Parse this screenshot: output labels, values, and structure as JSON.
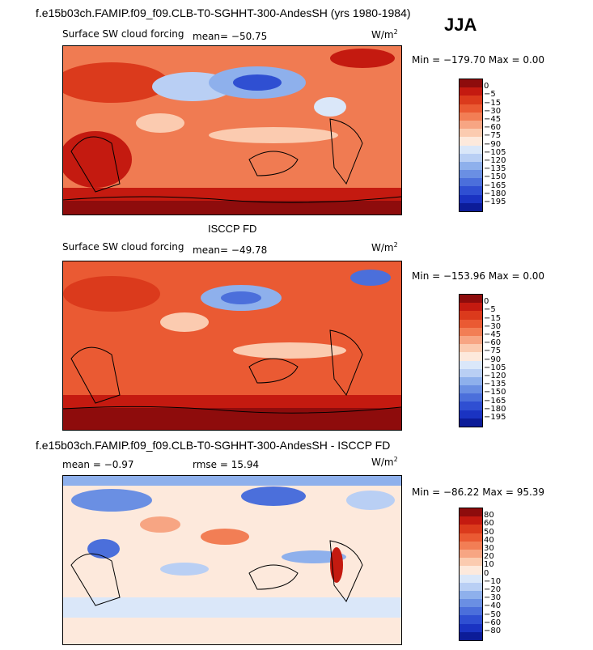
{
  "header": {
    "case_title": "f.e15b03ch.FAMIP.f09_f09.CLB-T0-SGHHT-300-AndesSH (yrs 1980-1984)",
    "season": "JJA"
  },
  "panels": [
    {
      "id": "model",
      "variable": "Surface SW cloud forcing",
      "mean_label": "mean= −50.75",
      "units": "W/m",
      "units_sup": "2",
      "minmax": "Min = −179.70 Max =    0.00",
      "title_above": "",
      "colorbar_levels": [
        "0",
        "−5",
        "−15",
        "−30",
        "−45",
        "−60",
        "−75",
        "−90",
        "−105",
        "−120",
        "−135",
        "−150",
        "−165",
        "−180",
        "−195"
      ],
      "colorbar_colors": [
        "#8e0c0c",
        "#c41a10",
        "#db3a1c",
        "#ea5a33",
        "#f27e55",
        "#f7a583",
        "#fbcbb0",
        "#fde9dc",
        "#dae7f9",
        "#b9cff4",
        "#8eb0ec",
        "#6a8fe3",
        "#4b6fdb",
        "#2f4fd2",
        "#1a33c2",
        "#0c1c98"
      ]
    },
    {
      "id": "obs",
      "variable": "Surface SW cloud forcing",
      "mean_label": "mean= −49.78",
      "units": "W/m",
      "units_sup": "2",
      "minmax": "Min = −153.96 Max =    0.00",
      "title_above": "ISCCP FD",
      "colorbar_levels": [
        "0",
        "−5",
        "−15",
        "−30",
        "−45",
        "−60",
        "−75",
        "−90",
        "−105",
        "−120",
        "−135",
        "−150",
        "−165",
        "−180",
        "−195"
      ],
      "colorbar_colors": [
        "#8e0c0c",
        "#c41a10",
        "#db3a1c",
        "#ea5a33",
        "#f27e55",
        "#f7a583",
        "#fbcbb0",
        "#fde9dc",
        "#dae7f9",
        "#b9cff4",
        "#8eb0ec",
        "#6a8fe3",
        "#4b6fdb",
        "#2f4fd2",
        "#1a33c2",
        "#0c1c98"
      ]
    },
    {
      "id": "diff",
      "title_above": "f.e15b03ch.FAMIP.f09_f09.CLB-T0-SGHHT-300-AndesSH - ISCCP FD",
      "mean_label": "mean =   −0.97",
      "rmse_label": "rmse =   15.94",
      "units": "W/m",
      "units_sup": "2",
      "minmax": "Min = −86.22 Max =  95.39",
      "colorbar_levels": [
        "80",
        "60",
        "50",
        "40",
        "30",
        "20",
        "10",
        "0",
        "−10",
        "−20",
        "−30",
        "−40",
        "−50",
        "−60",
        "−80"
      ],
      "colorbar_colors": [
        "#8e0c0c",
        "#c41a10",
        "#db3a1c",
        "#ea5a33",
        "#f27e55",
        "#f7a583",
        "#fbcbb0",
        "#fde9dc",
        "#dae7f9",
        "#b9cff4",
        "#8eb0ec",
        "#6a8fe3",
        "#4b6fdb",
        "#2f4fd2",
        "#1a33c2",
        "#0c1c98"
      ]
    }
  ]
}
